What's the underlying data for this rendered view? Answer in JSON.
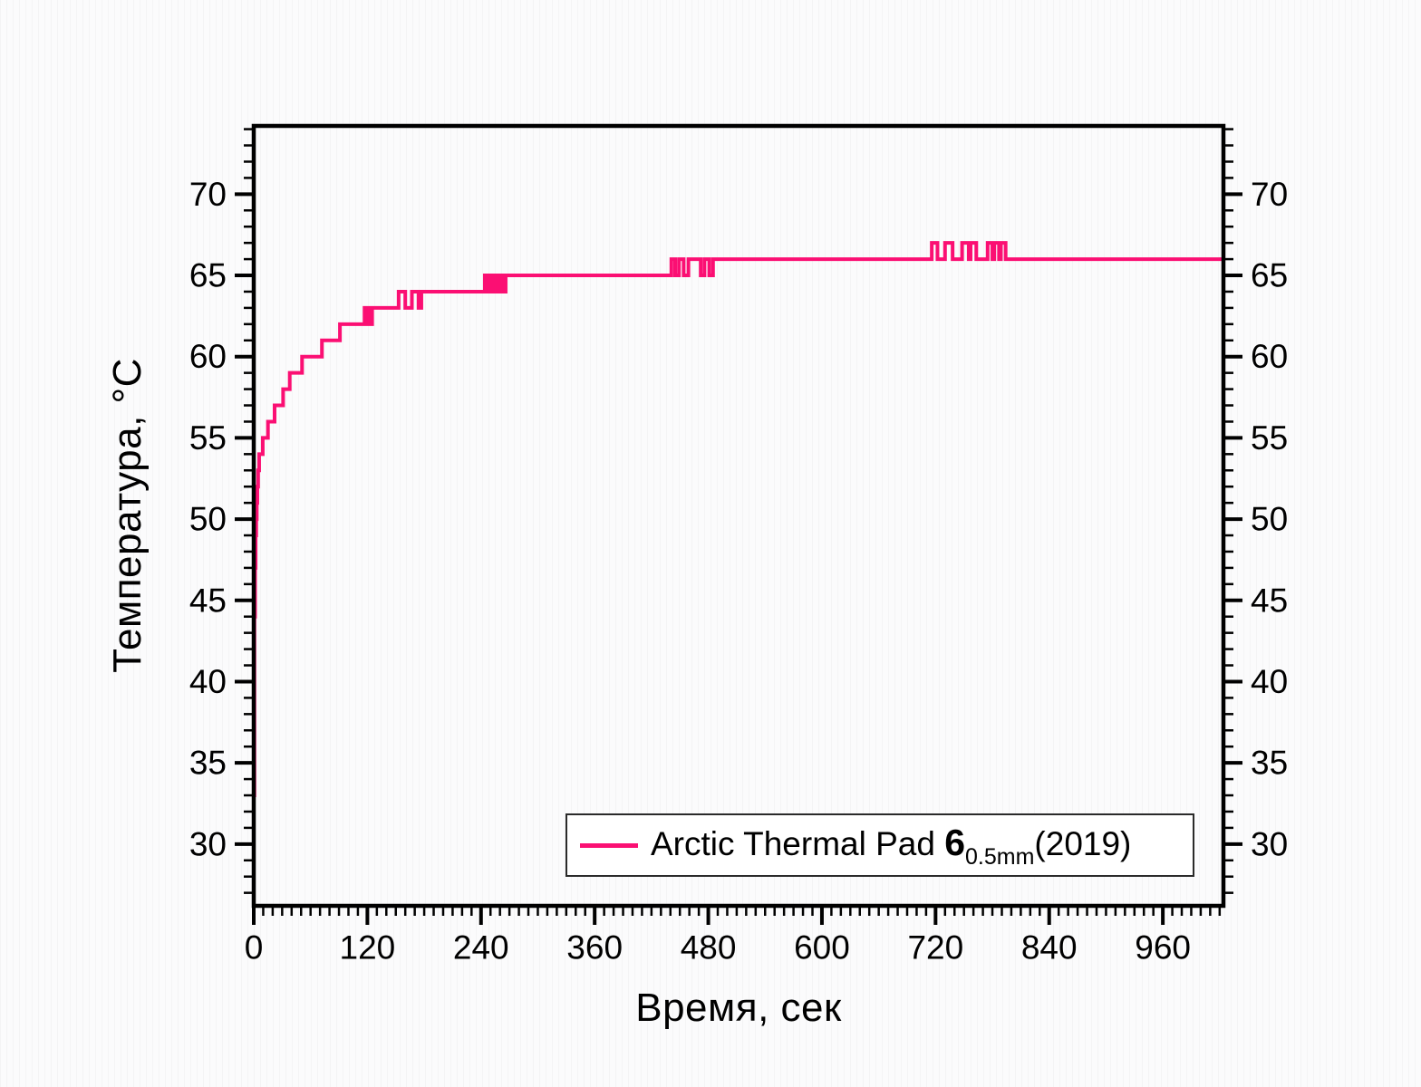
{
  "chart_data": {
    "type": "line",
    "title": "",
    "xlabel": "Время, сек",
    "ylabel": "Температура, °C",
    "xlim": [
      0,
      1024
    ],
    "ylim": [
      26.2,
      74.2
    ],
    "grid": false,
    "background_stripe_texture": true,
    "axis_color": "#000000",
    "x_ticks": {
      "major_start": 0,
      "major_end": 960,
      "major_step": 120,
      "minor_step": 10,
      "major_labels": [
        "0",
        "120",
        "240",
        "360",
        "480",
        "600",
        "720",
        "840",
        "960"
      ]
    },
    "y_ticks": {
      "major_start": 30,
      "major_end": 70,
      "major_step": 5,
      "minor_step": 1,
      "major_labels": [
        "30",
        "35",
        "40",
        "45",
        "50",
        "55",
        "60",
        "65",
        "70"
      ],
      "mirrored_right": true
    },
    "legend": {
      "position": "inside-bottom-right",
      "label_plain": "Arctic Thermal Pad 6 0.5mm (2019)",
      "label_parts": {
        "prefix": "Arctic Thermal Pad ",
        "bold": "6",
        "subscript": "0.5mm",
        "suffix": "(2019)"
      }
    },
    "series": [
      {
        "name": "Arctic Thermal Pad 6 0.5mm (2019)",
        "color": "#FB0F73",
        "line_width": 4,
        "step_mode": "after",
        "points": [
          [
            0,
            33
          ],
          [
            0.7,
            44
          ],
          [
            1.4,
            47
          ],
          [
            2,
            49
          ],
          [
            2.6,
            50
          ],
          [
            3.2,
            51
          ],
          [
            3.8,
            52
          ],
          [
            4.6,
            53
          ],
          [
            5.7,
            54
          ],
          [
            9.5,
            55
          ],
          [
            15,
            56
          ],
          [
            22,
            57
          ],
          [
            31,
            58
          ],
          [
            38,
            59
          ],
          [
            51,
            60
          ],
          [
            72,
            61
          ],
          [
            91,
            62
          ],
          [
            117,
            63
          ],
          [
            118,
            62
          ],
          [
            119,
            63
          ],
          [
            120,
            62
          ],
          [
            121,
            63
          ],
          [
            122,
            62
          ],
          [
            123,
            63
          ],
          [
            124,
            62
          ],
          [
            125,
            63
          ],
          [
            153,
            64
          ],
          [
            160,
            63
          ],
          [
            167,
            64
          ],
          [
            174,
            63
          ],
          [
            177,
            64
          ],
          [
            244,
            65
          ],
          [
            245,
            64
          ],
          [
            246,
            65
          ],
          [
            247,
            64
          ],
          [
            248,
            65
          ],
          [
            249,
            64
          ],
          [
            250,
            65
          ],
          [
            251,
            64
          ],
          [
            252,
            65
          ],
          [
            253,
            64
          ],
          [
            254,
            65
          ],
          [
            255,
            64
          ],
          [
            256,
            65
          ],
          [
            257,
            64
          ],
          [
            258,
            65
          ],
          [
            259,
            64
          ],
          [
            260,
            65
          ],
          [
            261,
            64
          ],
          [
            262,
            65
          ],
          [
            263,
            64
          ],
          [
            264,
            65
          ],
          [
            265,
            64
          ],
          [
            266,
            65
          ],
          [
            441,
            66
          ],
          [
            445,
            65
          ],
          [
            449,
            66
          ],
          [
            454,
            65
          ],
          [
            459,
            66
          ],
          [
            472,
            65
          ],
          [
            476,
            66
          ],
          [
            481,
            65
          ],
          [
            485,
            66
          ],
          [
            716,
            67
          ],
          [
            722,
            66
          ],
          [
            730,
            67
          ],
          [
            738,
            66
          ],
          [
            748,
            67
          ],
          [
            755,
            66
          ],
          [
            757,
            67
          ],
          [
            763,
            66
          ],
          [
            775,
            67
          ],
          [
            780,
            66
          ],
          [
            782,
            67
          ],
          [
            787,
            66
          ],
          [
            789,
            67
          ],
          [
            794,
            66
          ],
          [
            1024,
            66
          ]
        ]
      }
    ]
  }
}
